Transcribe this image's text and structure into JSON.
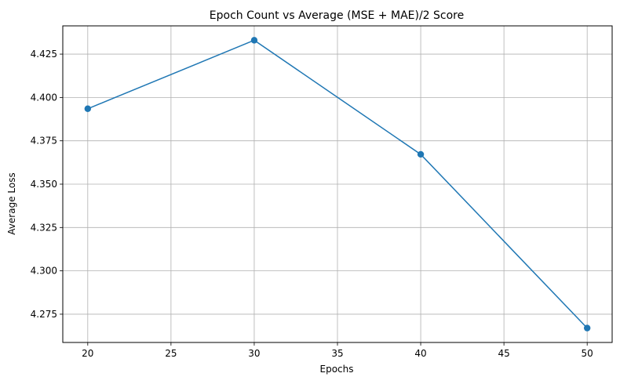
{
  "chart_data": {
    "type": "line",
    "title": "Epoch Count vs Average (MSE + MAE)/2 Score",
    "xlabel": "Epochs",
    "ylabel": "Average Loss",
    "x": [
      20,
      30,
      40,
      50
    ],
    "series": [
      {
        "values": [
          4.3935,
          4.433,
          4.3672,
          4.267
        ],
        "color": "#1f77b4",
        "marker": "circle"
      }
    ],
    "xlim": [
      18.5,
      51.5
    ],
    "ylim": [
      4.2587,
      4.4413
    ],
    "xticks": [
      20,
      25,
      30,
      35,
      40,
      45,
      50
    ],
    "xtick_labels": [
      "20",
      "25",
      "30",
      "35",
      "40",
      "45",
      "50"
    ],
    "yticks": [
      4.275,
      4.3,
      4.325,
      4.35,
      4.375,
      4.4,
      4.425
    ],
    "ytick_labels": [
      "4.275",
      "4.300",
      "4.325",
      "4.350",
      "4.375",
      "4.400",
      "4.425"
    ],
    "grid": true,
    "legend": false
  }
}
